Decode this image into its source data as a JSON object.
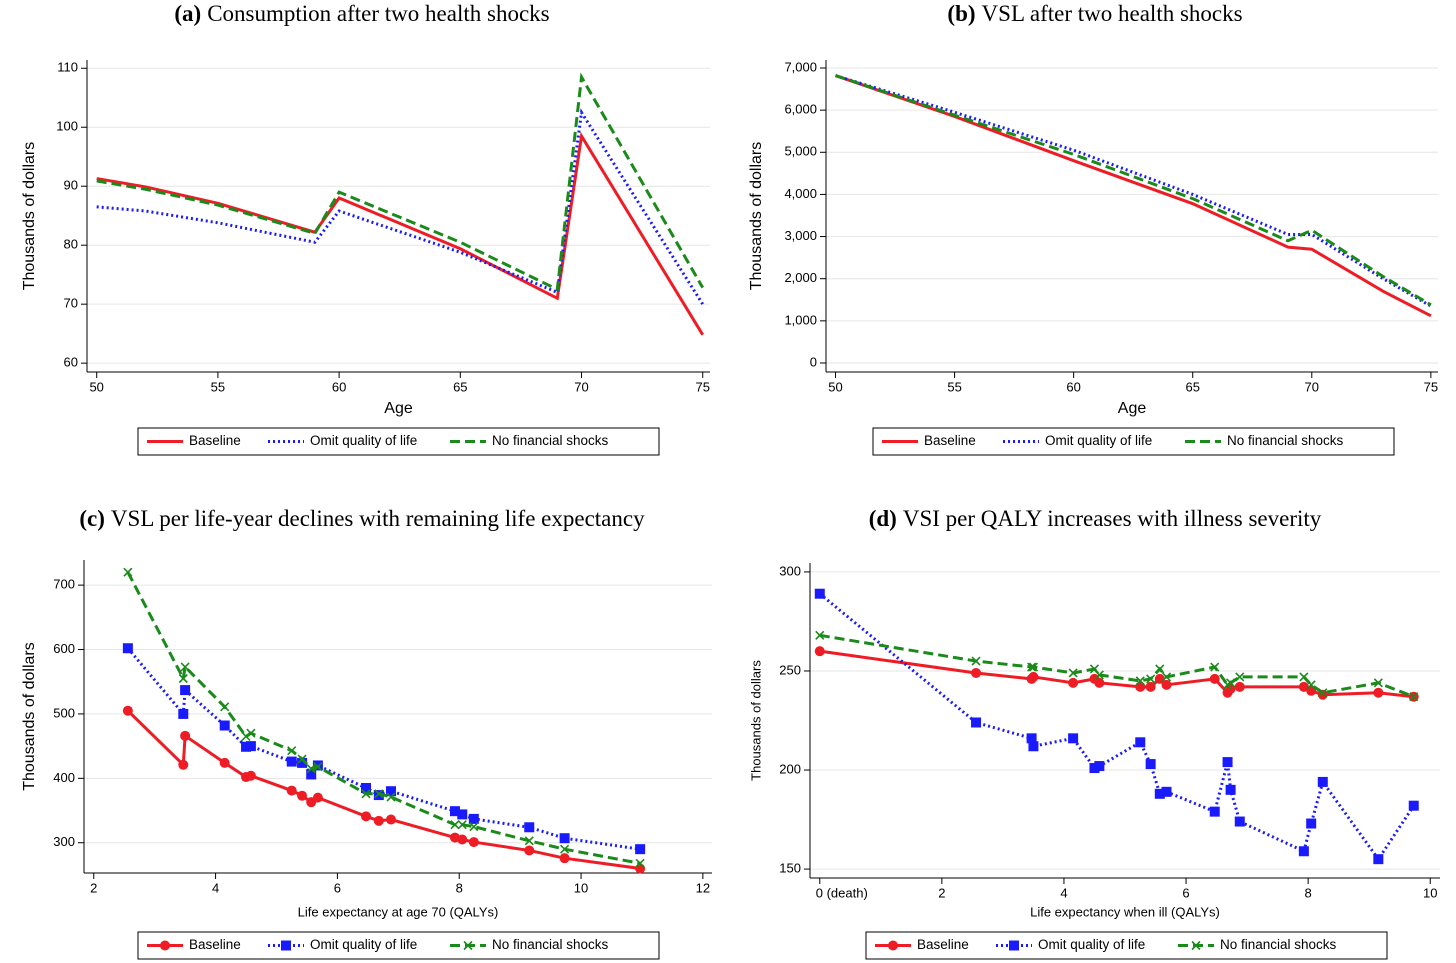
{
  "chart_data": [
    {
      "type": "line",
      "panel": "(a)",
      "title": "Consumption after two health shocks",
      "x_label": "Age",
      "y_label": "Thousands of dollars",
      "x": [
        50,
        52,
        55,
        59,
        60,
        65,
        69,
        70,
        75
      ],
      "series": [
        {
          "name": "Baseline",
          "color": "#ee1c25",
          "dash": "solid",
          "values": [
            91.3,
            89.9,
            87.1,
            82.2,
            88,
            79.4,
            71,
            98.5,
            64.8
          ]
        },
        {
          "name": "Omit quality of life",
          "color": "#1a1aff",
          "dash": "dot",
          "values": [
            86.5,
            85.8,
            83.8,
            80.5,
            85.8,
            78.8,
            72,
            102.5,
            70
          ]
        },
        {
          "name": "No financial shocks",
          "color": "#1a8a1a",
          "dash": "dash",
          "values": [
            90.9,
            89.5,
            86.8,
            82,
            89,
            80.5,
            72.5,
            108.5,
            72.8
          ]
        }
      ],
      "xlim": [
        49.6,
        75.3
      ],
      "xticks": [
        50,
        55,
        60,
        65,
        70,
        75
      ],
      "ylim": [
        58.5,
        111.4
      ],
      "yticks": [
        60,
        70,
        80,
        90,
        100,
        110
      ],
      "grid": true
    },
    {
      "type": "line",
      "panel": "(b)",
      "title": "VSL after two health shocks",
      "x_label": "Age",
      "y_label": "Thousands of dollars",
      "x": [
        50,
        55,
        60,
        65,
        69,
        70,
        73,
        75
      ],
      "series": [
        {
          "name": "Baseline",
          "color": "#ee1c25",
          "dash": "solid",
          "values": [
            6820,
            5850,
            4800,
            3780,
            2750,
            2700,
            1700,
            1120
          ]
        },
        {
          "name": "Omit quality of life",
          "color": "#1a1aff",
          "dash": "dot",
          "values": [
            6820,
            5950,
            5050,
            4000,
            3050,
            3050,
            2000,
            1350
          ]
        },
        {
          "name": "No financial shocks",
          "color": "#1a8a1a",
          "dash": "dash",
          "values": [
            6820,
            5880,
            4950,
            3900,
            2900,
            3150,
            2050,
            1380
          ]
        }
      ],
      "xlim": [
        49.6,
        75.3
      ],
      "xticks": [
        50,
        55,
        60,
        65,
        70,
        75
      ],
      "ylim": [
        -214,
        7190
      ],
      "yticks": [
        0,
        {
          "value": 1000,
          "label": "1,000"
        },
        {
          "value": 2000,
          "label": "2,000"
        },
        {
          "value": 3000,
          "label": "3,000"
        },
        {
          "value": 4000,
          "label": "4,000"
        },
        {
          "value": 5000,
          "label": "5,000"
        },
        {
          "value": 6000,
          "label": "6,000"
        },
        {
          "value": 7000,
          "label": "7,000"
        }
      ],
      "grid": true
    },
    {
      "type": "line",
      "panel": "(c)",
      "title": "VSL per life-year declines with remaining life expectancy",
      "x_label": "Life expectancy at age 70 (QALYs)",
      "y_label": "Thousands of dollars",
      "x": [
        2.56,
        3.47,
        3.5,
        4.15,
        4.5,
        4.58,
        5.25,
        5.42,
        5.57,
        5.68,
        6.47,
        6.68,
        6.88,
        7.93,
        8.05,
        8.24,
        9.15,
        9.73,
        10.97
      ],
      "series": [
        {
          "name": "Baseline",
          "color": "#ee1c25",
          "dash": "solid",
          "marker": "circle",
          "values": [
            505,
            421,
            466,
            424,
            402,
            404,
            381,
            373,
            363,
            370,
            341,
            334,
            336,
            308,
            305,
            301,
            288,
            276,
            260
          ]
        },
        {
          "name": "Omit quality of life",
          "color": "#1a1aff",
          "dash": "dot",
          "marker": "square",
          "values": [
            602,
            500,
            537,
            482,
            449,
            450,
            426,
            424,
            406,
            420,
            385,
            374,
            380,
            349,
            344,
            337,
            324,
            307,
            290
          ]
        },
        {
          "name": "No financial shocks",
          "color": "#1a8a1a",
          "dash": "dash",
          "marker": "x",
          "values": [
            720,
            555,
            573,
            511,
            465,
            470,
            443,
            430,
            415,
            418,
            376,
            376,
            371,
            328,
            328,
            325,
            303,
            290,
            268
          ]
        }
      ],
      "xlim": [
        1.84,
        12.15
      ],
      "xticks": [
        2,
        4,
        6,
        8,
        10,
        12
      ],
      "ylim": [
        253,
        739
      ],
      "yticks": [
        300,
        400,
        500,
        600,
        700
      ],
      "grid": true
    },
    {
      "type": "line",
      "panel": "(d)",
      "title": "VSI per QALY increases with illness severity",
      "x_label": "Life expectancy when ill (QALYs)",
      "y_label": "Thousands of dollars",
      "x": [
        0,
        2.56,
        3.47,
        3.5,
        4.15,
        4.5,
        4.58,
        5.25,
        5.42,
        5.57,
        5.68,
        6.47,
        6.68,
        6.73,
        6.88,
        7.93,
        8.05,
        8.24,
        9.15,
        9.73
      ],
      "series": [
        {
          "name": "Baseline",
          "color": "#ee1c25",
          "dash": "solid",
          "marker": "circle",
          "values": [
            260,
            249,
            246,
            247,
            244,
            246,
            244,
            242,
            242,
            246,
            243,
            246,
            239,
            241,
            242,
            242,
            240,
            238,
            239,
            237
          ]
        },
        {
          "name": "Omit quality of life",
          "color": "#1a1aff",
          "dash": "dot",
          "marker": "square",
          "values": [
            289,
            224,
            216,
            212,
            216,
            201,
            202,
            214,
            203,
            188,
            189,
            179,
            204,
            190,
            174,
            159,
            173,
            194,
            155,
            182
          ]
        },
        {
          "name": "No financial shocks",
          "color": "#1a8a1a",
          "dash": "dash",
          "marker": "x",
          "values": [
            268,
            255,
            252,
            252,
            249,
            251,
            248,
            245,
            246,
            251,
            247,
            252,
            243,
            244,
            247,
            247,
            243,
            239,
            244,
            237
          ]
        }
      ],
      "xlim": [
        -0.16,
        10.16
      ],
      "xticks": [
        {
          "value": 0,
          "label": "0 (death)"
        },
        2,
        4,
        6,
        8,
        10
      ],
      "ylim": [
        145.5,
        304.5
      ],
      "yticks": [
        150,
        200,
        250,
        300
      ],
      "grid": true
    }
  ]
}
